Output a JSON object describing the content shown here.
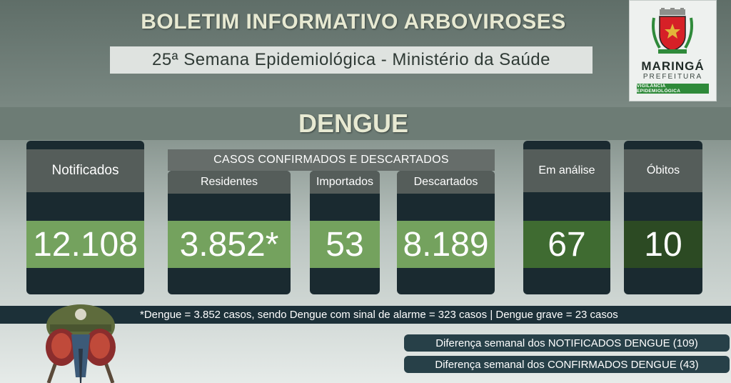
{
  "header": {
    "title": "BOLETIM INFORMATIVO ARBOVIROSES",
    "subtitle": "25ª Semana Epidemiológica - Ministério da Saúde"
  },
  "logo": {
    "name": "MARINGÁ",
    "sub": "PREFEITURA",
    "bar": "VIGILÂNCIA EPIDEMIOLÓGICA",
    "colors": {
      "shield": "#d62027",
      "green": "#2f8a3a",
      "gold": "#e2b53a"
    }
  },
  "section_title": "DENGUE",
  "cards": {
    "notificados": {
      "label": "Notificados",
      "value": "12.108"
    },
    "group_label": "CASOS CONFIRMADOS E DESCARTADOS",
    "residentes": {
      "label": "Residentes",
      "value": "3.852*"
    },
    "importados": {
      "label": "Importados",
      "value": "53"
    },
    "descartados": {
      "label": "Descartados",
      "value": "8.189"
    },
    "em_analise": {
      "label": "Em análise",
      "value": "67"
    },
    "obitos": {
      "label": "Óbitos",
      "value": "10"
    }
  },
  "footnote": "*Dengue = 3.852 casos, sendo Dengue com sinal de alarme = 323 casos |  Dengue grave = 23 casos",
  "differences": [
    "Diferença semanal dos NOTIFICADOS DENGUE (109)",
    "Diferença semanal dos CONFIRMADOS DENGUE (43)"
  ],
  "colors": {
    "card_bg": "#1a2a30",
    "header_gray": "#555d5a",
    "value_green_light": "#74a25e",
    "value_green_dark": "#3f6b31",
    "title_cream": "#e7e9d2"
  }
}
